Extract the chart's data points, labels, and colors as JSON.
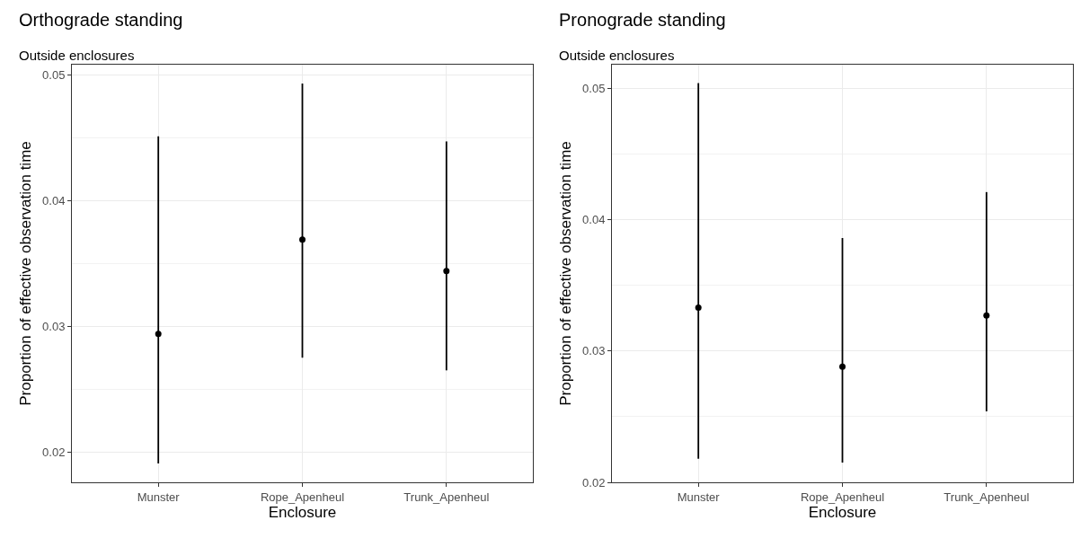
{
  "chart_data": [
    {
      "type": "scatter",
      "title": "Orthograde standing",
      "subtitle": "Outside enclosures",
      "xlabel": "Enclosure",
      "ylabel": "Proportion of effective observation time",
      "categories": [
        "Munster",
        "Rope_Apenheul",
        "Trunk_Apenheul"
      ],
      "series": [
        {
          "color": "#000000",
          "values": [
            0.0294,
            0.0369,
            0.0344
          ],
          "errors": [
            [
              0.0191,
              0.0451
            ],
            [
              0.0275,
              0.0493
            ],
            [
              0.0265,
              0.0447
            ]
          ]
        }
      ],
      "ylim": [
        0.0176,
        0.0508
      ],
      "yticks": [
        0.02,
        0.03,
        0.04,
        0.05
      ],
      "grid": true,
      "marker": "circle"
    },
    {
      "type": "scatter",
      "title": "Pronograde standing",
      "subtitle": "Outside enclosures",
      "xlabel": "Enclosure",
      "ylabel": "Proportion of effective observation time",
      "categories": [
        "Munster",
        "Rope_Apenheul",
        "Trunk_Apenheul"
      ],
      "series": [
        {
          "color": "#000000",
          "values": [
            0.0333,
            0.0288,
            0.0327
          ],
          "errors": [
            [
              0.0218,
              0.0504
            ],
            [
              0.0215,
              0.0386
            ],
            [
              0.0254,
              0.0421
            ]
          ]
        }
      ],
      "ylim": [
        0.02,
        0.0518
      ],
      "yticks": [
        0.02,
        0.03,
        0.04,
        0.05
      ],
      "grid": true,
      "marker": "circle"
    }
  ]
}
